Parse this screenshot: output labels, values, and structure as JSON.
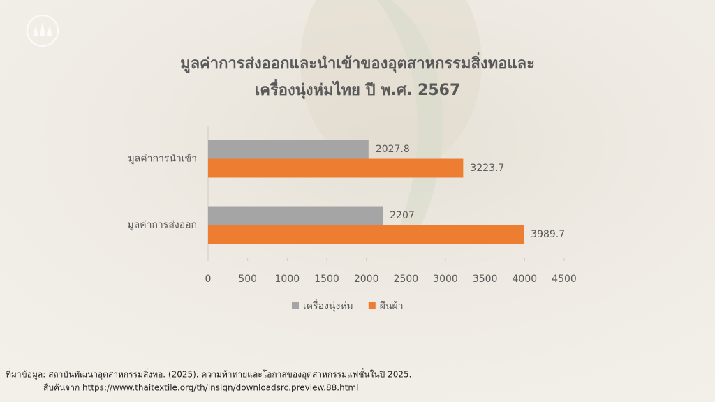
{
  "chart_data": {
    "type": "hbar",
    "title": [
      "มูลค่าการส่งออกและนำเข้าของอุตสาหกรรมสิ่งทอและ",
      "เครื่องนุ่งห่มไทย ปี พ.ศ. 2567"
    ],
    "categories": [
      "มูลค่าการนำเข้า",
      "มูลค่าการส่งออก"
    ],
    "series": [
      {
        "name": "เครื่องนุ่งห่ม",
        "color": "#a5a5a5",
        "values": [
          2027.8,
          2207
        ]
      },
      {
        "name": "ผืนผ้า",
        "color": "#ed7d31",
        "values": [
          3223.7,
          3989.7
        ]
      }
    ],
    "xlim": [
      0,
      4500
    ],
    "xticks": [
      0,
      500,
      1000,
      1500,
      2000,
      2500,
      3000,
      3500,
      4000,
      4500
    ],
    "grid": false,
    "legend": "bottom"
  },
  "source": [
    "ที่มาข้อมูล: สถาบันพัฒนาอุตสาหกรรมสิ่งทอ. (2025). ความท้าทายและโอกาสของอุตสาหกรรมแฟชั่นในปี 2025.",
    "สืบค้นจาก https://www.thaitextile.org/th/insign/downloadsrc.preview.88.html"
  ]
}
